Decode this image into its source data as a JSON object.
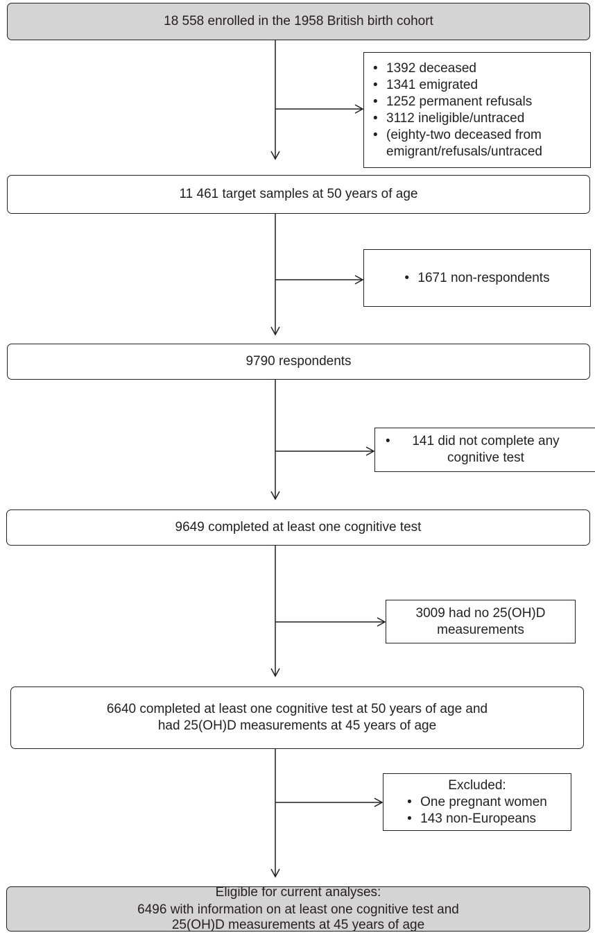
{
  "boxes": {
    "enrolled": "18 558 enrolled in the 1958 British birth cohort",
    "target": "11 461 target samples at 50 years of age",
    "respondents": "9790 respondents",
    "completed": "9649 completed at least one cognitive test",
    "completed_measured": "6640 completed at least one cognitive test at 50 years of age and had 25(OH)D measurements at 45 years of age",
    "eligible_heading": "Eligible for current analyses:",
    "eligible_body": "6496 with information on at least one cognitive test and 25(OH)D measurements at 45 years of age"
  },
  "exclusions": {
    "first": [
      "1392 deceased",
      "1341 emigrated",
      "1252 permanent refusals",
      "3112 ineligible/untraced",
      "(eighty-two deceased from emigrant/refusals/untraced"
    ],
    "second": [
      "1671 non-respondents"
    ],
    "third": [
      "141 did not complete any cognitive test"
    ],
    "fourth": "3009 had no 25(OH)D measurements",
    "fifth_heading": "Excluded:",
    "fifth": [
      "One pregnant women",
      "143 non-Europeans"
    ]
  },
  "colors": {
    "stroke": "#231f20",
    "shaded_fill": "#d4d4d5"
  }
}
